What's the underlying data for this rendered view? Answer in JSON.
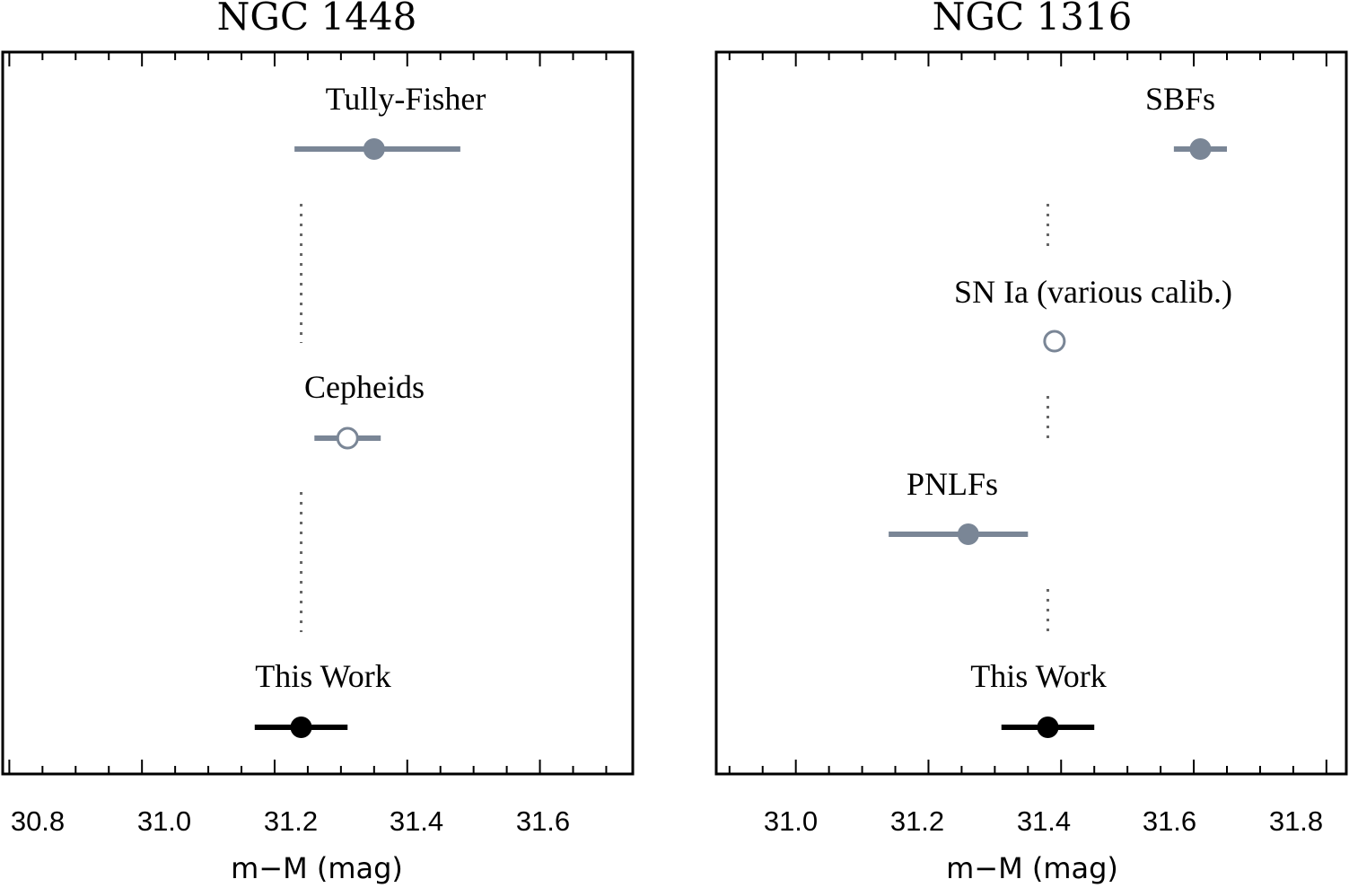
{
  "chart_data": [
    {
      "type": "scatter",
      "title": "NGC 1448",
      "xlabel": "m−M (mag)",
      "xlim": [
        30.79,
        31.74
      ],
      "xticks": [
        "30.8",
        "31.0",
        "31.2",
        "31.4",
        "31.6"
      ],
      "minor_step": 0.05,
      "points": [
        {
          "label": "Tully-Fisher",
          "value": 31.35,
          "err_low": 0.12,
          "err_high": 0.13,
          "marker": "filled",
          "color": "#7a8696"
        },
        {
          "label": "Cepheids",
          "value": 31.31,
          "err_low": 0.05,
          "err_high": 0.05,
          "marker": "open",
          "color": "#7a8696"
        },
        {
          "label": "This Work",
          "value": 31.24,
          "err_low": 0.07,
          "err_high": 0.07,
          "marker": "filled",
          "color": "#000000"
        }
      ],
      "reference_value": 31.24
    },
    {
      "type": "scatter",
      "title": "NGC 1316",
      "xlabel": "m−M (mag)",
      "xlim": [
        30.88,
        31.83
      ],
      "xticks": [
        "31.0",
        "31.2",
        "31.4",
        "31.6",
        "31.8"
      ],
      "minor_step": 0.05,
      "points": [
        {
          "label": "SBFs",
          "value": 31.61,
          "err_low": 0.04,
          "err_high": 0.04,
          "marker": "filled",
          "color": "#7a8696"
        },
        {
          "label": "SN Ia (various calib.)",
          "value": 31.39,
          "err_low": 0,
          "err_high": 0,
          "marker": "open",
          "color": "#7a8696"
        },
        {
          "label": "PNLFs",
          "value": 31.26,
          "err_low": 0.12,
          "err_high": 0.09,
          "marker": "filled",
          "color": "#7a8696"
        },
        {
          "label": "This Work",
          "value": 31.38,
          "err_low": 0.07,
          "err_high": 0.07,
          "marker": "filled",
          "color": "#000000"
        }
      ],
      "reference_value": 31.38
    }
  ]
}
